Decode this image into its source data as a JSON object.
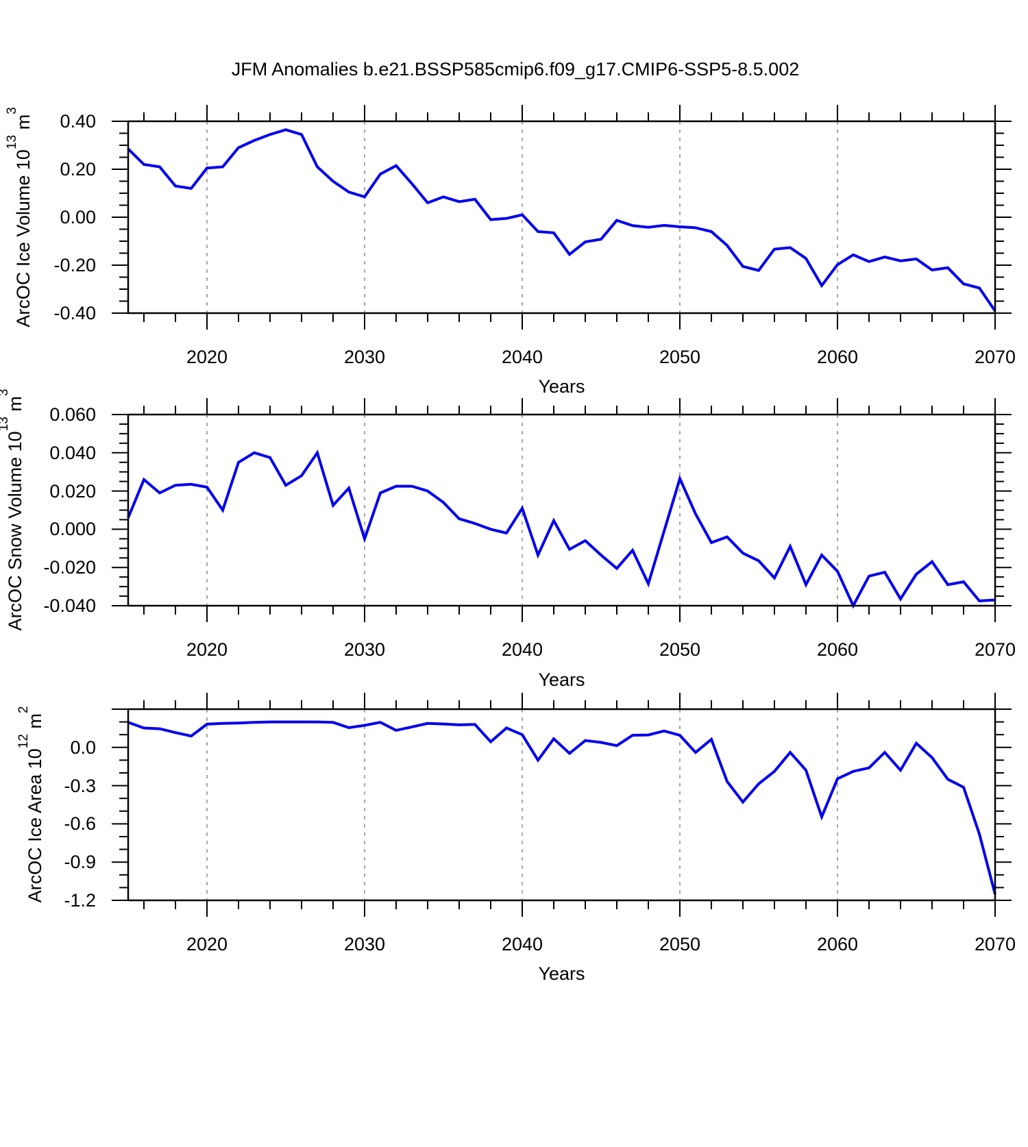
{
  "page": {
    "title": "JFM Anomalies b.e21.BSSP585cmip6.f09_g17.CMIP6-SSP5-8.5.002"
  },
  "colors": {
    "line": "#0000ee",
    "grid": "#7f7f7f",
    "axis": "#000000",
    "background": "#ffffff"
  },
  "chart_data": {
    "type": "line",
    "title": "JFM Anomalies b.e21.BSSP585cmip6.f09_g17.CMIP6-SSP5-8.5.002",
    "legend": "none",
    "grid": "dashed vertical lines at decades",
    "shared_x": {
      "label": "Years",
      "years": [
        2015,
        2016,
        2017,
        2018,
        2019,
        2020,
        2021,
        2022,
        2023,
        2024,
        2025,
        2026,
        2027,
        2028,
        2029,
        2030,
        2031,
        2032,
        2033,
        2034,
        2035,
        2036,
        2037,
        2038,
        2039,
        2040,
        2041,
        2042,
        2043,
        2044,
        2045,
        2046,
        2047,
        2048,
        2049,
        2050,
        2051,
        2052,
        2053,
        2054,
        2055,
        2056,
        2057,
        2058,
        2059,
        2060,
        2061,
        2062,
        2063,
        2064,
        2065,
        2066,
        2067,
        2068,
        2069,
        2070
      ]
    },
    "panels": [
      {
        "name": "ice-volume",
        "ylabel": {
          "prefix": "ArcOC Ice Volume 10",
          "exponent": "13",
          "unit": " m",
          "unit_exponent": "3"
        },
        "xlabel": "Years",
        "xlim": [
          2015,
          2070
        ],
        "ylim": [
          -0.4,
          0.4
        ],
        "xticks_major": [
          2020,
          2030,
          2040,
          2050,
          2060,
          2070
        ],
        "xtick_labels": [
          "2020",
          "2030",
          "2040",
          "2050",
          "2060",
          "2070"
        ],
        "xminor_step": 2,
        "yticks_major": [
          0.4,
          0.2,
          0.0,
          -0.2,
          -0.4
        ],
        "ytick_labels": [
          "0.40",
          "0.20",
          "0.00",
          "-0.20",
          "-0.40"
        ],
        "yminor_step": 0.05,
        "gridlines_x": [
          2020,
          2030,
          2040,
          2050,
          2060
        ],
        "values": [
          0.285,
          0.22,
          0.21,
          0.13,
          0.12,
          0.205,
          0.21,
          0.29,
          0.32,
          0.345,
          0.365,
          0.345,
          0.21,
          0.15,
          0.105,
          0.085,
          0.18,
          0.215,
          0.14,
          0.06,
          0.085,
          0.065,
          0.075,
          -0.01,
          -0.005,
          0.01,
          -0.06,
          -0.065,
          -0.155,
          -0.103,
          -0.092,
          -0.013,
          -0.035,
          -0.042,
          -0.034,
          -0.04,
          -0.044,
          -0.06,
          -0.118,
          -0.205,
          -0.222,
          -0.133,
          -0.127,
          -0.172,
          -0.285,
          -0.198,
          -0.157,
          -0.185,
          -0.166,
          -0.182,
          -0.174,
          -0.22,
          -0.211,
          -0.278,
          -0.295,
          -0.391
        ]
      },
      {
        "name": "snow-volume",
        "ylabel": {
          "prefix": "ArcOC Snow Volume 10",
          "exponent": "13",
          "unit": " m",
          "unit_exponent": "3"
        },
        "xlabel": "Years",
        "xlim": [
          2015,
          2070
        ],
        "ylim": [
          -0.04,
          0.06
        ],
        "xticks_major": [
          2020,
          2030,
          2040,
          2050,
          2060,
          2070
        ],
        "xtick_labels": [
          "2020",
          "2030",
          "2040",
          "2050",
          "2060",
          "2070"
        ],
        "xminor_step": 2,
        "yticks_major": [
          0.06,
          0.04,
          0.02,
          0.0,
          -0.02,
          -0.04
        ],
        "ytick_labels": [
          "0.060",
          "0.040",
          "0.020",
          "0.000",
          "-0.020",
          "-0.040"
        ],
        "yminor_step": 0.005,
        "gridlines_x": [
          2020,
          2030,
          2040,
          2050,
          2060
        ],
        "values": [
          0.006,
          0.026,
          0.019,
          0.023,
          0.0235,
          0.022,
          0.01,
          0.035,
          0.04,
          0.0375,
          0.023,
          0.028,
          0.04,
          0.0125,
          0.0215,
          -0.005,
          0.019,
          0.0225,
          0.0225,
          0.02,
          0.014,
          0.0055,
          0.003,
          0.0,
          -0.002,
          0.011,
          -0.0135,
          0.0045,
          -0.0105,
          -0.006,
          -0.0135,
          -0.0205,
          -0.011,
          -0.0285,
          -0.001,
          0.0265,
          0.008,
          -0.007,
          -0.004,
          -0.0125,
          -0.0165,
          -0.0255,
          -0.009,
          -0.029,
          -0.0135,
          -0.022,
          -0.04,
          -0.0245,
          -0.0225,
          -0.0365,
          -0.0235,
          -0.017,
          -0.029,
          -0.0275,
          -0.0375,
          -0.037
        ]
      },
      {
        "name": "ice-area",
        "ylabel": {
          "prefix": "ArcOC Ice Area 10",
          "exponent": "12",
          "unit": " m",
          "unit_exponent": "2"
        },
        "xlabel": "Years",
        "xlim": [
          2015,
          2070
        ],
        "ylim": [
          -1.2,
          0.3
        ],
        "xticks_major": [
          2020,
          2030,
          2040,
          2050,
          2060,
          2070
        ],
        "xtick_labels": [
          "2020",
          "2030",
          "2040",
          "2050",
          "2060",
          "2070"
        ],
        "xminor_step": 2,
        "yticks_major": [
          0.3,
          0.0,
          -0.3,
          -0.6,
          -0.9,
          -1.2
        ],
        "ytick_labels": [
          "",
          "0.0",
          "-0.3",
          "-0.6",
          "-0.9",
          "-1.2"
        ],
        "yminor_step": 0.1,
        "gridlines_x": [
          2020,
          2030,
          2040,
          2050,
          2060
        ],
        "values": [
          0.196,
          0.152,
          0.146,
          0.116,
          0.089,
          0.182,
          0.188,
          0.191,
          0.196,
          0.2,
          0.2,
          0.2,
          0.2,
          0.196,
          0.155,
          0.173,
          0.197,
          0.134,
          0.161,
          0.188,
          0.184,
          0.177,
          0.18,
          0.044,
          0.152,
          0.1,
          -0.1,
          0.068,
          -0.047,
          0.054,
          0.039,
          0.014,
          0.095,
          0.098,
          0.129,
          0.095,
          -0.039,
          0.063,
          -0.268,
          -0.429,
          -0.286,
          -0.188,
          -0.039,
          -0.179,
          -0.545,
          -0.246,
          -0.188,
          -0.161,
          -0.039,
          -0.179,
          0.032,
          -0.08,
          -0.25,
          -0.313,
          -0.679,
          -1.152
        ]
      }
    ]
  }
}
